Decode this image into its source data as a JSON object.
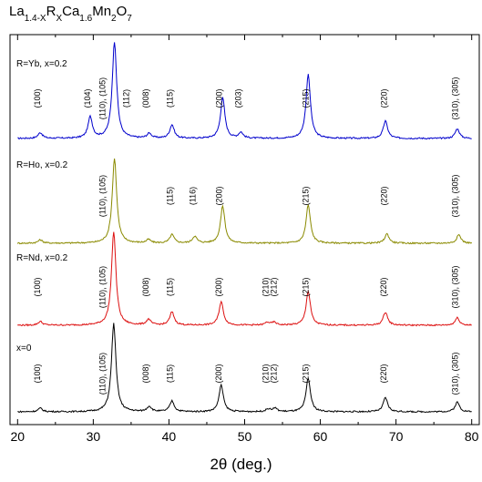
{
  "chart_data": {
    "type": "line",
    "title_parts": [
      "La",
      "1.4-X",
      "R",
      "X",
      "Ca",
      "1.6",
      "Mn",
      "2",
      "O",
      "7"
    ],
    "xlabel": "2θ (deg.)",
    "xlim": [
      19,
      81
    ],
    "xticks": [
      20,
      30,
      40,
      50,
      60,
      70,
      80
    ],
    "y_axis_visible": false,
    "grid": false,
    "series": [
      {
        "name": "R=Yb, x=0.2",
        "color": "#0000cc",
        "peaks": [
          [
            23.0,
            6
          ],
          [
            29.6,
            22
          ],
          [
            32.8,
            100
          ],
          [
            37.4,
            5
          ],
          [
            40.4,
            14
          ],
          [
            47.1,
            42
          ],
          [
            49.5,
            6
          ],
          [
            58.4,
            66
          ],
          [
            68.6,
            18
          ],
          [
            78.1,
            10
          ]
        ],
        "labels": [
          {
            "x": 23.0,
            "text": "(100)"
          },
          {
            "x": 29.6,
            "text": "(104)"
          },
          {
            "x": 31.6,
            "text": "(110), (105)"
          },
          {
            "x": 34.7,
            "text": "(112)"
          },
          {
            "x": 37.3,
            "text": "(008)"
          },
          {
            "x": 40.5,
            "text": "(115)"
          },
          {
            "x": 47.0,
            "text": "(200)"
          },
          {
            "x": 49.5,
            "text": "(203)"
          },
          {
            "x": 58.4,
            "text": "(215)"
          },
          {
            "x": 68.8,
            "text": "(220)"
          },
          {
            "x": 78.2,
            "text": "(310), (305)"
          }
        ]
      },
      {
        "name": "R=Ho, x=0.2",
        "color": "#8a8a00",
        "peaks": [
          [
            23.0,
            4
          ],
          [
            32.8,
            100
          ],
          [
            37.3,
            4
          ],
          [
            40.4,
            10
          ],
          [
            43.4,
            8
          ],
          [
            47.1,
            44
          ],
          [
            58.4,
            45
          ],
          [
            68.8,
            11
          ],
          [
            78.3,
            10
          ]
        ],
        "labels": [
          {
            "x": 31.6,
            "text": "(110), (105)"
          },
          {
            "x": 40.5,
            "text": "(115)"
          },
          {
            "x": 43.5,
            "text": "(116)"
          },
          {
            "x": 47.0,
            "text": "(200)"
          },
          {
            "x": 58.4,
            "text": "(215)"
          },
          {
            "x": 68.8,
            "text": "(220)"
          },
          {
            "x": 78.2,
            "text": "(310), (305)"
          }
        ]
      },
      {
        "name": "R=Nd, x=0.2",
        "color": "#dd1010",
        "peaks": [
          [
            23.0,
            4
          ],
          [
            32.7,
            100
          ],
          [
            37.3,
            6
          ],
          [
            40.4,
            14
          ],
          [
            46.9,
            25
          ],
          [
            53.0,
            3
          ],
          [
            53.9,
            3
          ],
          [
            58.4,
            36
          ],
          [
            68.6,
            14
          ],
          [
            78.1,
            8
          ]
        ],
        "labels": [
          {
            "x": 23.0,
            "text": "(100)"
          },
          {
            "x": 31.6,
            "text": "(110), (105)"
          },
          {
            "x": 37.3,
            "text": "(008)"
          },
          {
            "x": 40.5,
            "text": "(115)"
          },
          {
            "x": 46.9,
            "text": "(200)"
          },
          {
            "x": 53.1,
            "text": "(210)"
          },
          {
            "x": 54.2,
            "text": "(212)"
          },
          {
            "x": 58.4,
            "text": "(215)"
          },
          {
            "x": 68.7,
            "text": "(220)"
          },
          {
            "x": 78.2,
            "text": "(310), (305)"
          }
        ]
      },
      {
        "name": "x=0",
        "color": "#000000",
        "peaks": [
          [
            23.0,
            4
          ],
          [
            32.7,
            100
          ],
          [
            37.4,
            6
          ],
          [
            40.4,
            12
          ],
          [
            46.9,
            30
          ],
          [
            53.1,
            3
          ],
          [
            54.0,
            4
          ],
          [
            58.4,
            38
          ],
          [
            68.6,
            16
          ],
          [
            78.1,
            11
          ]
        ],
        "labels": [
          {
            "x": 23.0,
            "text": "(100)"
          },
          {
            "x": 31.6,
            "text": "(110), (105)"
          },
          {
            "x": 37.3,
            "text": "(008)"
          },
          {
            "x": 40.5,
            "text": "(115)"
          },
          {
            "x": 46.9,
            "text": "(200)"
          },
          {
            "x": 53.1,
            "text": "(210)"
          },
          {
            "x": 54.2,
            "text": "(212)"
          },
          {
            "x": 58.4,
            "text": "(215)"
          },
          {
            "x": 68.7,
            "text": "(220)"
          },
          {
            "x": 78.2,
            "text": "(310), (305)"
          }
        ]
      }
    ]
  }
}
